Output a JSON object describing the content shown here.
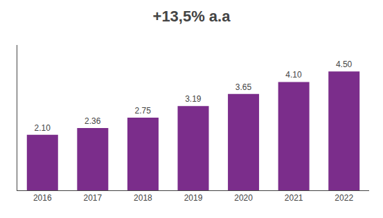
{
  "chart_data": {
    "type": "bar",
    "title": "+13,5% a.a",
    "categories": [
      "2016",
      "2017",
      "2018",
      "2019",
      "2020",
      "2021",
      "2022"
    ],
    "values": [
      2.1,
      2.36,
      2.75,
      3.19,
      3.65,
      4.1,
      4.5
    ],
    "value_labels": [
      "2.10",
      "2.36",
      "2.75",
      "3.19",
      "3.65",
      "4.10",
      "4.50"
    ],
    "data_labels": true,
    "color": "#7B2D8B",
    "ylim": [
      0,
      5.5
    ],
    "grid": false,
    "tick_labels": "x"
  }
}
